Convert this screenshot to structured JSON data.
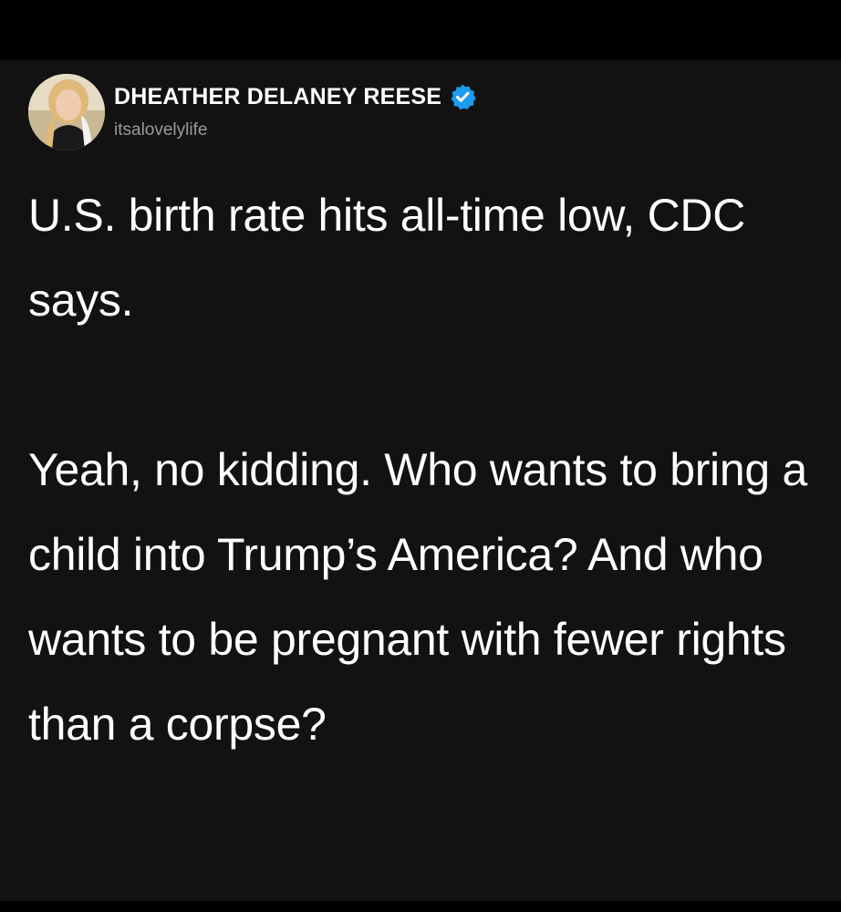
{
  "post": {
    "author": {
      "name": "DHEATHER DELANEY REESE",
      "handle": "itsalovelylife",
      "verified": true,
      "avatar_icon": "profile-photo",
      "verified_icon": "verified-badge-icon"
    },
    "paragraphs": [
      "U.S. birth rate hits all-time low, CDC says.",
      "Yeah, no kidding. Who wants to bring a child into Trump’s America? And who wants to be pregnant with fewer rights than a corpse?"
    ]
  },
  "colors": {
    "background": "#000000",
    "card": "#121212",
    "text": "#ffffff",
    "handle": "#9a9a9a",
    "verified": "#1d9bf0"
  }
}
